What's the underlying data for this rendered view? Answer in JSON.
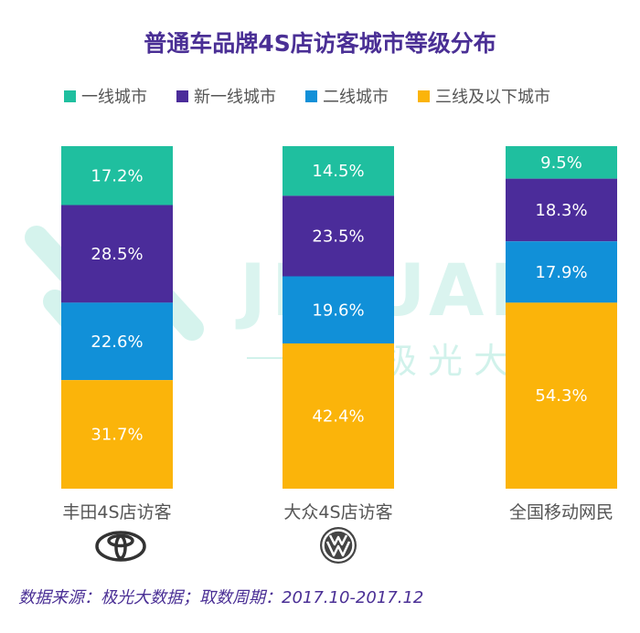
{
  "chart_data": {
    "type": "bar",
    "stacked": true,
    "percent": true,
    "title": "普通车品牌4S店访客城市等级分布",
    "categories": [
      "丰田4S店访客",
      "大众4S店访客",
      "全国移动网民"
    ],
    "series": [
      {
        "name": "一线城市",
        "color": "#1fbf9f",
        "values": [
          17.2,
          14.5,
          9.5
        ]
      },
      {
        "name": "新一线城市",
        "color": "#4b2c9a",
        "values": [
          28.5,
          23.5,
          18.3
        ]
      },
      {
        "name": "二线城市",
        "color": "#1190d8",
        "values": [
          22.6,
          19.6,
          17.9
        ]
      },
      {
        "name": "三线及以下城市",
        "color": "#fbb40a",
        "values": [
          31.7,
          42.4,
          54.3
        ]
      }
    ],
    "value_suffix": "%",
    "legend_position": "top",
    "ylim": [
      0,
      100
    ]
  },
  "watermark": {
    "brand": "JIGUANG",
    "subtitle": "极光大数据"
  },
  "footer": "数据来源：极光大数据；取数周期：2017.10-2017.12",
  "icons": [
    "toyota-logo-icon",
    "volkswagen-logo-icon"
  ]
}
